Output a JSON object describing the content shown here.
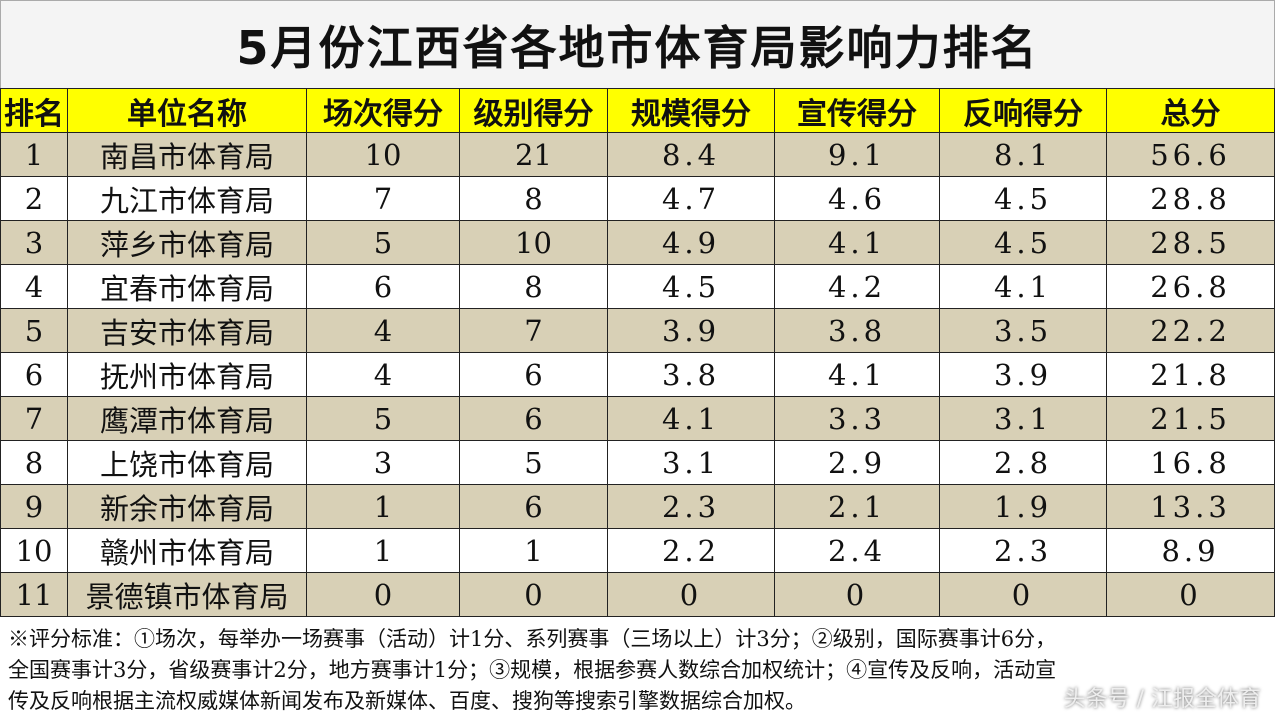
{
  "header": {
    "title": "5月份江西省各地市体育局影响力排名"
  },
  "table": {
    "columns": [
      "排名",
      "单位名称",
      "场次得分",
      "级别得分",
      "规模得分",
      "宣传得分",
      "反响得分",
      "总分"
    ],
    "rows": [
      [
        1,
        "南昌市体育局",
        10,
        21,
        8.4,
        9.1,
        8.1,
        56.6
      ],
      [
        2,
        "九江市体育局",
        7,
        8,
        4.7,
        4.6,
        4.5,
        28.8
      ],
      [
        3,
        "萍乡市体育局",
        5,
        10,
        4.9,
        4.1,
        4.5,
        28.5
      ],
      [
        4,
        "宜春市体育局",
        6,
        8,
        4.5,
        4.2,
        4.1,
        26.8
      ],
      [
        5,
        "吉安市体育局",
        4,
        7,
        3.9,
        3.8,
        3.5,
        22.2
      ],
      [
        6,
        "抚州市体育局",
        4,
        6,
        3.8,
        4.1,
        3.9,
        21.8
      ],
      [
        7,
        "鹰潭市体育局",
        5,
        6,
        4.1,
        3.3,
        3.1,
        21.5
      ],
      [
        8,
        "上饶市体育局",
        3,
        5,
        3.1,
        2.9,
        2.8,
        16.8
      ],
      [
        9,
        "新余市体育局",
        1,
        6,
        2.3,
        2.1,
        1.9,
        13.3
      ],
      [
        10,
        "赣州市体育局",
        1,
        1,
        2.2,
        2.4,
        2.3,
        8.9
      ],
      [
        11,
        "景德镇市体育局",
        0,
        0,
        0,
        0,
        0,
        0
      ]
    ]
  },
  "footnote": [
    "※评分标准：①场次，每举办一场赛事（活动）计1分、系列赛事（三场以上）计3分；②级别，国际赛事计6分，",
    "全国赛事计3分，省级赛事计2分，地方赛事计1分；③规模，根据参赛人数综合加权统计；④宣传及反响，活动宣",
    "传及反响根据主流权威媒体新闻发布及新媒体、百度、搜狗等搜索引擎数据综合加权。"
  ],
  "watermark": "头条号 / 江报全体育"
}
